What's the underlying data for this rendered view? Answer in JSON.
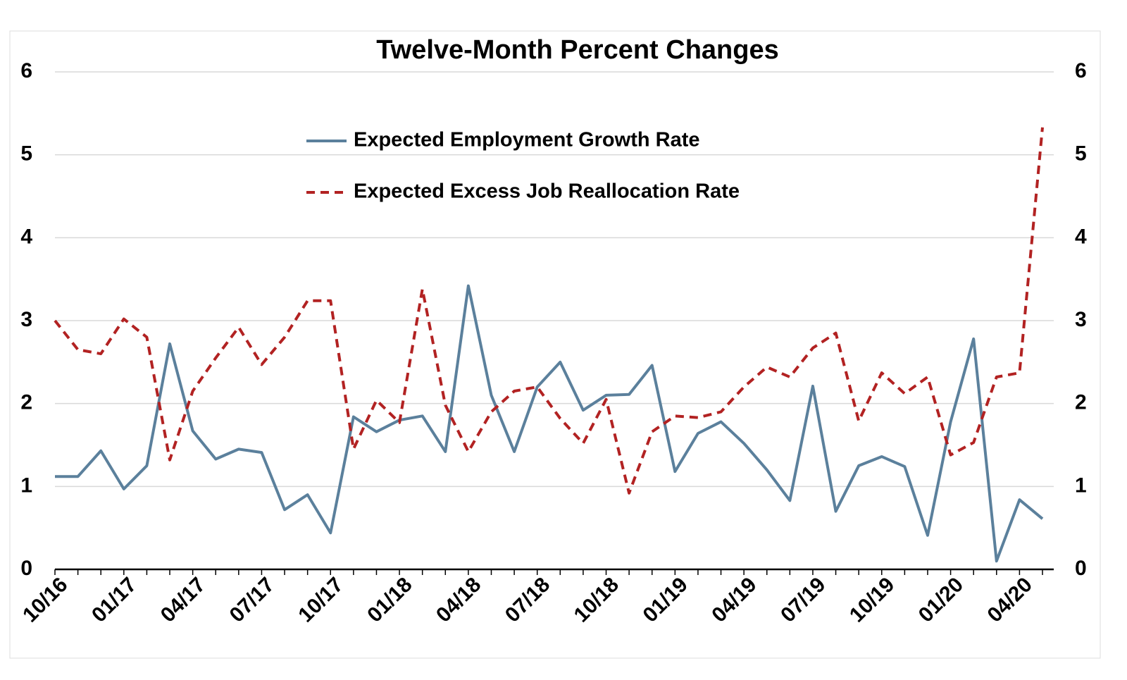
{
  "chart_data": {
    "type": "line",
    "title": "Twelve-Month Percent Changes",
    "categories": [
      "10/16",
      null,
      null,
      "01/17",
      null,
      null,
      "04/17",
      null,
      null,
      "07/17",
      null,
      null,
      "10/17",
      null,
      null,
      "01/18",
      null,
      null,
      "04/18",
      null,
      null,
      "07/18",
      null,
      null,
      "10/18",
      null,
      null,
      "01/19",
      null,
      null,
      "04/19",
      null,
      null,
      "07/19",
      null,
      null,
      "10/19",
      null,
      null,
      "01/20",
      null,
      null,
      "04/20",
      null
    ],
    "series": [
      {
        "name": "Expected Employment Growth Rate",
        "color": "#5b809c",
        "dash": false,
        "values": [
          1.12,
          1.12,
          1.43,
          0.97,
          1.25,
          2.72,
          1.67,
          1.33,
          1.45,
          1.41,
          0.72,
          0.9,
          0.44,
          1.84,
          1.66,
          1.8,
          1.85,
          1.42,
          3.42,
          2.1,
          1.42,
          2.2,
          2.5,
          1.92,
          2.1,
          2.11,
          2.46,
          1.18,
          1.64,
          1.78,
          1.52,
          1.2,
          0.83,
          2.21,
          0.7,
          1.25,
          1.36,
          1.24,
          0.41,
          1.78,
          2.78,
          0.1,
          0.84,
          0.61
        ]
      },
      {
        "name": "Expected Excess Job Reallocation Rate",
        "color": "#b22222",
        "dash": true,
        "values": [
          3.0,
          2.65,
          2.6,
          3.02,
          2.8,
          1.32,
          2.15,
          2.55,
          2.92,
          2.47,
          2.8,
          3.24,
          3.24,
          1.45,
          2.04,
          1.77,
          3.38,
          1.98,
          1.42,
          1.9,
          2.15,
          2.2,
          1.82,
          1.52,
          2.05,
          0.92,
          1.66,
          1.85,
          1.83,
          1.9,
          2.2,
          2.44,
          2.32,
          2.67,
          2.85,
          1.79,
          2.37,
          2.12,
          2.32,
          1.38,
          1.53,
          2.32,
          2.37,
          5.33
        ]
      }
    ],
    "ylim": [
      0,
      6
    ],
    "yticks": [
      0,
      1,
      2,
      3,
      4,
      5,
      6
    ],
    "y2lim": [
      0,
      6
    ],
    "y2ticks": [
      0,
      1,
      2,
      3,
      4,
      5,
      6
    ],
    "grid": true
  }
}
